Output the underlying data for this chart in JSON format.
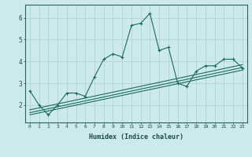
{
  "xlabel": "Humidex (Indice chaleur)",
  "background_color": "#cceaea",
  "grid_color": "#b8d4d4",
  "line_color": "#1a6b5a",
  "xlim": [
    -0.5,
    23.5
  ],
  "ylim": [
    1.2,
    6.6
  ],
  "yticks": [
    2,
    3,
    4,
    5,
    6
  ],
  "xticks": [
    0,
    1,
    2,
    3,
    4,
    5,
    6,
    7,
    8,
    9,
    10,
    11,
    12,
    13,
    14,
    15,
    16,
    17,
    18,
    19,
    20,
    21,
    22,
    23
  ],
  "series": [
    [
      0,
      2.65
    ],
    [
      1,
      2.0
    ],
    [
      2,
      1.55
    ],
    [
      3,
      2.0
    ],
    [
      4,
      2.55
    ],
    [
      5,
      2.55
    ],
    [
      6,
      2.4
    ],
    [
      7,
      3.3
    ],
    [
      8,
      4.1
    ],
    [
      9,
      4.35
    ],
    [
      10,
      4.2
    ],
    [
      11,
      5.65
    ],
    [
      12,
      5.75
    ],
    [
      13,
      6.2
    ],
    [
      14,
      4.5
    ],
    [
      15,
      4.65
    ],
    [
      16,
      3.0
    ],
    [
      17,
      2.85
    ],
    [
      18,
      3.55
    ],
    [
      19,
      3.8
    ],
    [
      20,
      3.8
    ],
    [
      21,
      4.1
    ],
    [
      22,
      4.1
    ],
    [
      23,
      3.7
    ]
  ],
  "line1": [
    [
      0,
      1.55
    ],
    [
      23,
      3.6
    ]
  ],
  "line2": [
    [
      0,
      1.65
    ],
    [
      23,
      3.72
    ]
  ],
  "line3": [
    [
      0,
      1.78
    ],
    [
      23,
      3.85
    ]
  ]
}
